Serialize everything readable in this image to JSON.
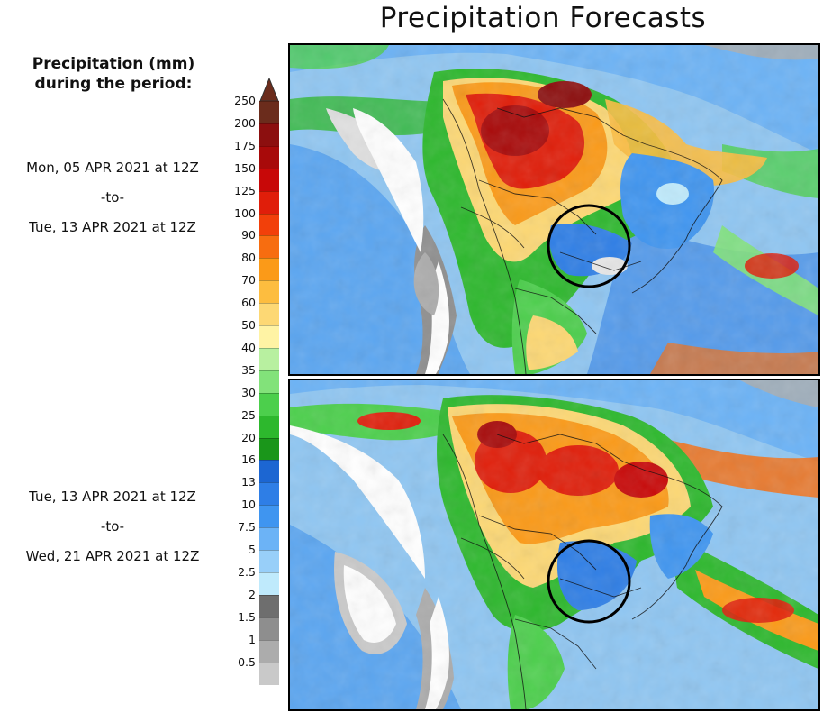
{
  "title": "Precipitation Forecasts",
  "legend": {
    "heading_line1": "Precipitation (mm)",
    "heading_line2": "during the period:",
    "ticks": [
      "250",
      "200",
      "175",
      "150",
      "125",
      "100",
      "90",
      "80",
      "70",
      "60",
      "50",
      "40",
      "35",
      "30",
      "25",
      "20",
      "16",
      "13",
      "10",
      "7.5",
      "5",
      "2.5",
      "2",
      "1.5",
      "1",
      "0.5"
    ],
    "colors": [
      "#6b2c1c",
      "#8c0f0f",
      "#a80a0a",
      "#c80808",
      "#e01e0a",
      "#f2400a",
      "#f76d10",
      "#fb9a18",
      "#fdbd3f",
      "#fdd874",
      "#fff3a4",
      "#b8f0a0",
      "#82e27a",
      "#4ccf4c",
      "#2db82d",
      "#1a961a",
      "#1c66d2",
      "#2e7ee6",
      "#3f95f0",
      "#6cb3f6",
      "#98cff9",
      "#bfeafc",
      "#6e6e6e",
      "#8e8e8e",
      "#acacac",
      "#c9c9c9"
    ],
    "arrow_top_color": "#6b2c1c",
    "arrow_bottom_color": "#ffffff"
  },
  "periods": [
    {
      "start": "Mon, 05 APR 2021 at 12Z",
      "sep": "-to-",
      "end": "Tue, 13 APR 2021 at 12Z"
    },
    {
      "start": "Tue, 13 APR 2021 at 12Z",
      "sep": "-to-",
      "end": "Wed, 21 APR 2021 at 12Z"
    }
  ],
  "maps": [
    {
      "name": "forecast-map-week1",
      "highlight": "circle"
    },
    {
      "name": "forecast-map-week2",
      "highlight": "circle"
    }
  ]
}
